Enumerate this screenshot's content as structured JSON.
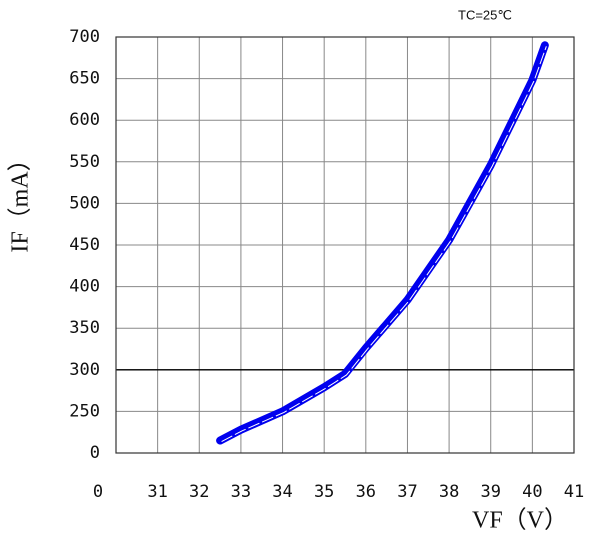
{
  "chart_data": {
    "type": "line",
    "annotation": "TC=25℃",
    "x_label": "VF（V）",
    "y_label": "IF（mA）",
    "series": [
      {
        "color": "#0000ee",
        "x": [
          32.5,
          33,
          34,
          35,
          35.5,
          36,
          37,
          38,
          39,
          40,
          40.3
        ],
        "values": [
          215,
          228,
          250,
          279,
          295,
          326,
          384,
          456,
          546,
          648,
          690
        ]
      }
    ],
    "xlim": [
      30,
      41
    ],
    "xticks": [
      {
        "value": 30,
        "label": "0"
      },
      31,
      32,
      33,
      34,
      35,
      36,
      37,
      38,
      39,
      40,
      41
    ],
    "ylim": [
      200,
      700
    ],
    "yticks": [
      {
        "value": 200,
        "label": "0"
      },
      250,
      300,
      350,
      400,
      450,
      500,
      550,
      600,
      650,
      700
    ],
    "reference_line": 300,
    "grid": true
  }
}
